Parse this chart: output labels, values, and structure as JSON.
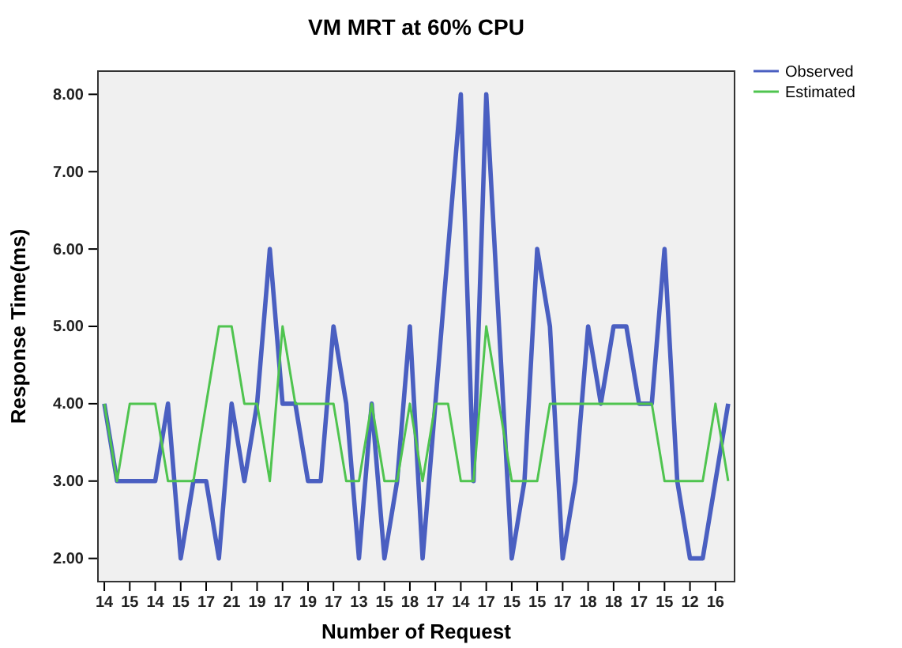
{
  "chart_data": {
    "type": "line",
    "title": "VM MRT at 60% CPU",
    "xlabel": "Number of Request",
    "ylabel": "Response Time(ms)",
    "categories": [
      "14",
      null,
      "15",
      null,
      "14",
      null,
      "15",
      null,
      "17",
      null,
      "21",
      null,
      "19",
      null,
      "17",
      null,
      "19",
      null,
      "17",
      null,
      "13",
      null,
      "15",
      null,
      "18",
      null,
      "17",
      null,
      "14",
      null,
      "17",
      null,
      "15",
      null,
      "15",
      null,
      "17",
      null,
      "18",
      null,
      "18",
      null,
      "17",
      null,
      "15",
      null,
      "12",
      null,
      "16",
      null
    ],
    "series": [
      {
        "name": "Observed",
        "color": "#4a5fc1",
        "values": [
          4,
          3,
          3,
          3,
          3,
          4,
          2,
          3,
          3,
          2,
          4,
          3,
          4,
          6,
          4,
          4,
          3,
          3,
          5,
          4,
          2,
          4,
          2,
          3,
          5,
          2,
          4,
          6,
          8,
          3,
          8,
          5,
          2,
          3,
          6,
          5,
          2,
          3,
          5,
          4,
          5,
          5,
          4,
          4,
          6,
          3,
          2,
          2,
          3,
          4
        ]
      },
      {
        "name": "Estimated",
        "color": "#4fc44f",
        "values": [
          4,
          3,
          4,
          4,
          4,
          3,
          3,
          3,
          4,
          5,
          5,
          4,
          4,
          3,
          5,
          4,
          4,
          4,
          4,
          3,
          3,
          4,
          3,
          3,
          4,
          3,
          4,
          4,
          3,
          3,
          5,
          4,
          3,
          3,
          3,
          4,
          4,
          4,
          4,
          4,
          4,
          4,
          4,
          4,
          3,
          3,
          3,
          3,
          4,
          3
        ]
      }
    ],
    "ylim": [
      1.7,
      8.3
    ],
    "yticks": [
      {
        "value": 2,
        "label": "2.00"
      },
      {
        "value": 3,
        "label": "3.00"
      },
      {
        "value": 4,
        "label": "4.00"
      },
      {
        "value": 5,
        "label": "5.00"
      },
      {
        "value": 6,
        "label": "6.00"
      },
      {
        "value": 7,
        "label": "7.00"
      },
      {
        "value": 8,
        "label": "8.00"
      }
    ],
    "legend": "top right",
    "grid": false,
    "marker": "none",
    "line_style": "solid"
  }
}
